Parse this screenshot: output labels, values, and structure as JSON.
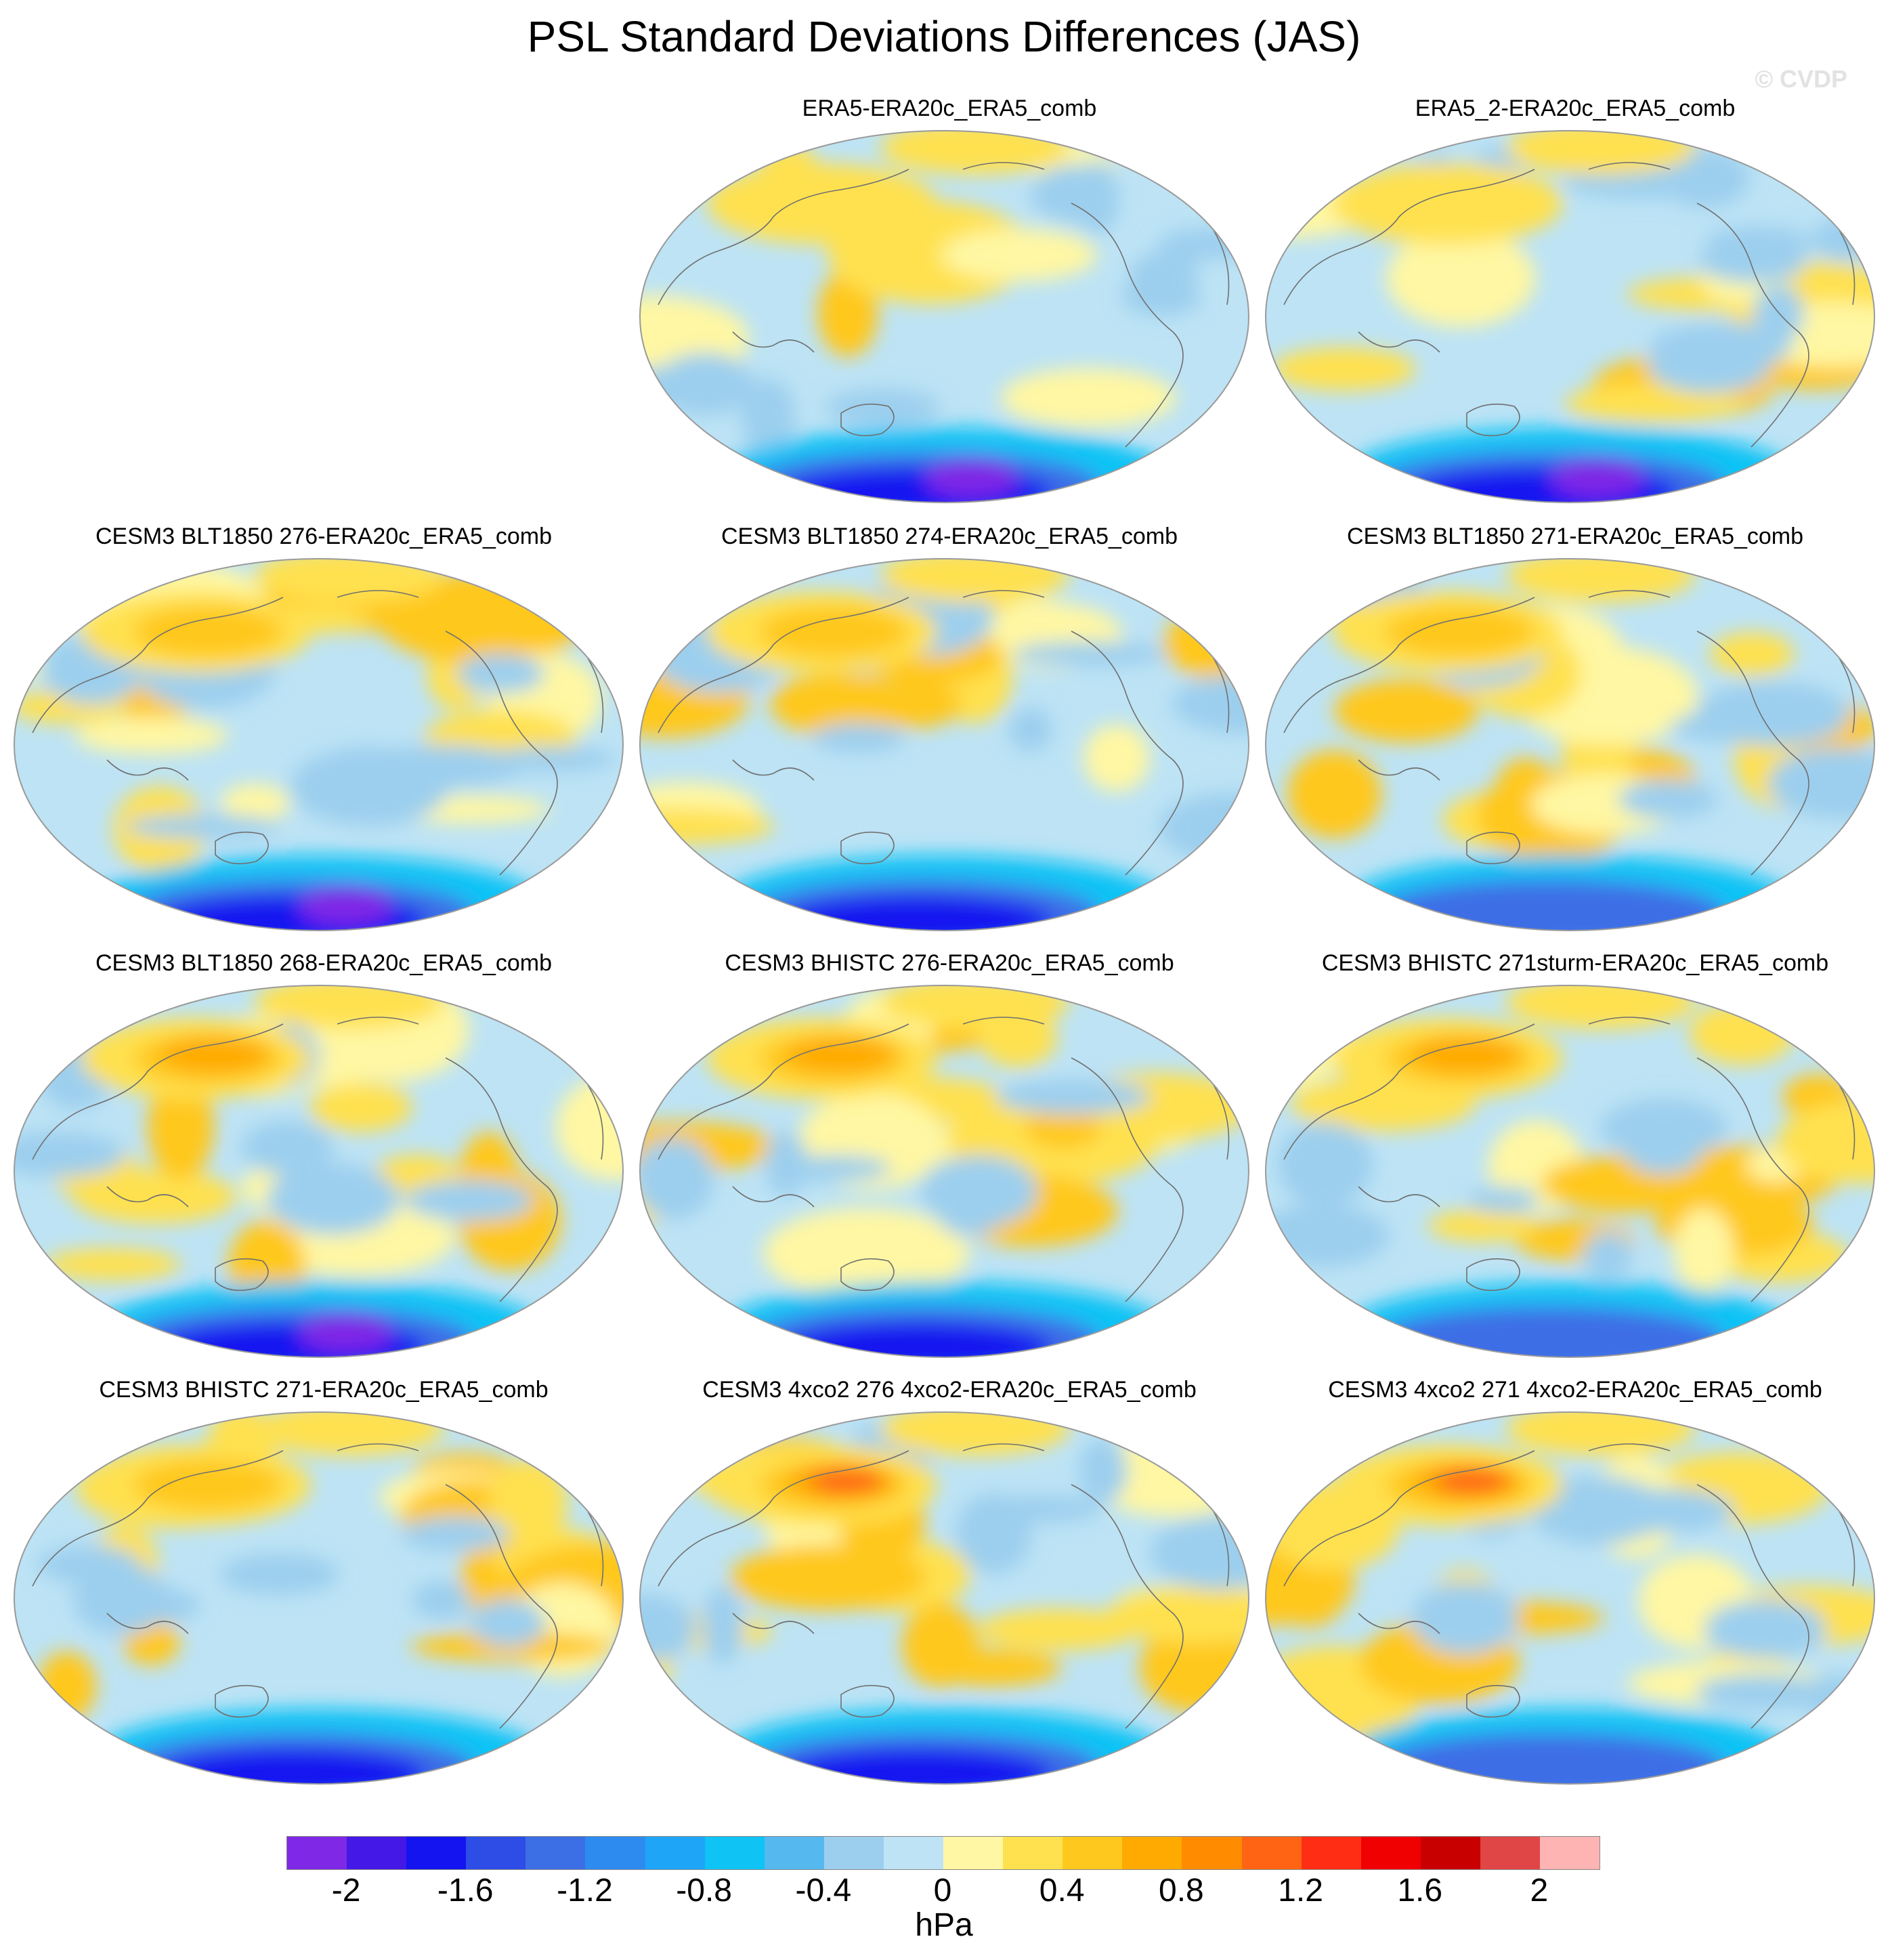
{
  "title": "PSL Standard Deviations Differences (JAS)",
  "watermark": "© CVDP",
  "panels": [
    {
      "label": "",
      "empty": true
    },
    {
      "label": "ERA5-ERA20c_ERA5_comb",
      "pos": 0.15,
      "neg": 0.55,
      "south_low": 1.0,
      "nh_high": 0.2
    },
    {
      "label": "ERA5_2-ERA20c_ERA5_comb",
      "pos": 0.15,
      "neg": 0.55,
      "south_low": 0.95,
      "nh_high": 0.2
    },
    {
      "label": "CESM3 BLT1850 276-ERA20c_ERA5_comb",
      "pos": 0.45,
      "neg": 0.35,
      "south_low": 1.0,
      "nh_high": 0.5
    },
    {
      "label": "CESM3 BLT1850 274-ERA20c_ERA5_comb",
      "pos": 0.45,
      "neg": 0.35,
      "south_low": 0.8,
      "nh_high": 0.55
    },
    {
      "label": "CESM3 BLT1850 271-ERA20c_ERA5_comb",
      "pos": 0.5,
      "neg": 0.3,
      "south_low": 0.7,
      "nh_high": 0.6
    },
    {
      "label": "CESM3 BLT1850 268-ERA20c_ERA5_comb",
      "pos": 0.5,
      "neg": 0.3,
      "south_low": 1.0,
      "nh_high": 0.7
    },
    {
      "label": "CESM3 BHISTC 276-ERA20c_ERA5_comb",
      "pos": 0.5,
      "neg": 0.3,
      "south_low": 0.85,
      "nh_high": 0.7
    },
    {
      "label": "CESM3 BHISTC 271sturm-ERA20c_ERA5_comb",
      "pos": 0.55,
      "neg": 0.25,
      "south_low": 0.75,
      "nh_high": 0.7
    },
    {
      "label": "CESM3 BHISTC 271-ERA20c_ERA5_comb",
      "pos": 0.5,
      "neg": 0.3,
      "south_low": 0.8,
      "nh_high": 0.5
    },
    {
      "label": "CESM3 4xco2 276 4xco2-ERA20c_ERA5_comb",
      "pos": 0.55,
      "neg": 0.3,
      "south_low": 0.8,
      "nh_high": 1.0
    },
    {
      "label": "CESM3 4xco2 271 4xco2-ERA20c_ERA5_comb",
      "pos": 0.55,
      "neg": 0.3,
      "south_low": 0.7,
      "nh_high": 0.9
    }
  ],
  "colorbar": {
    "units": "hPa",
    "colors": [
      "#7f28e6",
      "#4418e6",
      "#1414f0",
      "#2e4ce6",
      "#3c6ee6",
      "#2d8bf0",
      "#1ea5f8",
      "#0fc3f5",
      "#55b9f0",
      "#9ccfee",
      "#bde3f5",
      "#fff7a3",
      "#ffe14f",
      "#ffc81e",
      "#ffaa00",
      "#ff8c00",
      "#ff6414",
      "#ff2d14",
      "#f00000",
      "#c80000",
      "#e04646",
      "#ffb4b4"
    ],
    "tick_labels": [
      "-2",
      "-1.6",
      "-1.2",
      "-0.8",
      "-0.4",
      "0",
      "0.4",
      "0.8",
      "1.2",
      "1.6",
      "2"
    ],
    "range": [
      -2.2,
      2.2
    ]
  }
}
